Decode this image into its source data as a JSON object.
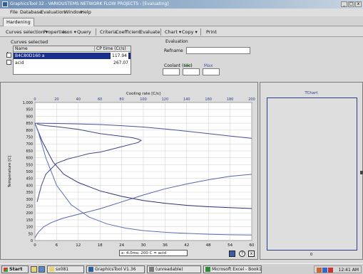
{
  "window": {
    "title": "GraphicsTool 32 - VARIOUSTEMS NETWORK FLOW PROJECTS - [Evaluating]",
    "min_glyph": "_",
    "max_glyph": "□",
    "close_glyph": "x"
  },
  "menu": [
    "File",
    "Database",
    "Evaluation",
    "Window",
    "Help"
  ],
  "tabs": [
    "Hardening"
  ],
  "toolbar": {
    "items": [
      "Curves selection ▾",
      "Properties",
      "Icon ▾",
      "Query",
      "Criteria",
      "Coefficient",
      "Evaluate",
      "Chart ▾",
      "Copy ▾",
      "Print"
    ]
  },
  "curves": {
    "group_label": "Curves selected",
    "headers": [
      "Name",
      "CP time (Cr/s)"
    ],
    "rows": [
      {
        "name": "B4C80D160 a",
        "value": "117.94"
      },
      {
        "name": "acid",
        "value": "267.07"
      }
    ]
  },
  "evaluation": {
    "group_label": "Evaluation",
    "refname_label": "Refname",
    "refname_value": "",
    "coolant_label": "Coolant (sec)",
    "min_label": "Min",
    "max_label": "Max"
  },
  "chart_data": {
    "type": "line",
    "title": "",
    "xlabel": "Time [s]",
    "ylabel": "Temperature [C]",
    "top_xlabel": "Cooling rate [C/s]",
    "xlim": [
      0,
      60
    ],
    "ylim": [
      0,
      1000
    ],
    "top_xlim": [
      0,
      200
    ],
    "x_ticks": [
      0,
      6,
      12,
      18,
      24,
      30,
      36,
      42,
      48,
      54,
      60
    ],
    "y_ticks": [
      0,
      50,
      100,
      150,
      200,
      250,
      300,
      350,
      400,
      450,
      500,
      550,
      600,
      650,
      700,
      750,
      800,
      850,
      900,
      950,
      1000
    ],
    "y_tick_labels": [
      "0",
      "50",
      "100",
      "150",
      "200",
      "250",
      "300",
      "350",
      "400",
      "450",
      "500",
      "550",
      "600",
      "650",
      "700",
      "750",
      "800",
      "850",
      "900",
      "950",
      "1,000"
    ],
    "top_ticks": [
      0,
      20,
      40,
      60,
      80,
      100,
      120,
      140,
      160,
      180,
      200
    ],
    "grid": true,
    "series": [
      {
        "color": "#2c2f78",
        "axis": "bottom",
        "x": [
          0,
          2,
          5,
          8,
          12,
          18,
          24,
          30,
          36,
          42,
          48,
          54,
          60
        ],
        "y": [
          850,
          720,
          570,
          480,
          420,
          360,
          320,
          290,
          270,
          255,
          245,
          238,
          232
        ]
      },
      {
        "color": "#5a6fb6",
        "axis": "bottom",
        "x": [
          0,
          1,
          3,
          6,
          10,
          15,
          20,
          25,
          30,
          36,
          42,
          48,
          54,
          60
        ],
        "y": [
          850,
          780,
          600,
          400,
          260,
          170,
          120,
          90,
          72,
          60,
          52,
          46,
          42,
          40
        ]
      },
      {
        "color": "#4a4f9a",
        "axis": "top",
        "x": [
          0,
          20,
          40,
          60,
          80,
          100,
          120,
          140,
          160,
          180,
          200
        ],
        "y": [
          850,
          848,
          845,
          840,
          832,
          822,
          808,
          792,
          775,
          757,
          740
        ]
      },
      {
        "color": "#404486",
        "axis": "top",
        "x": [
          2,
          6,
          10,
          20,
          30,
          40,
          50,
          60,
          70,
          80,
          90,
          95,
          98,
          95,
          90,
          80,
          70,
          60,
          50,
          40,
          30,
          20,
          10,
          5,
          2
        ],
        "y": [
          280,
          400,
          480,
          560,
          590,
          610,
          630,
          640,
          660,
          680,
          700,
          710,
          725,
          735,
          745,
          755,
          765,
          775,
          790,
          805,
          815,
          825,
          832,
          838,
          845
        ]
      },
      {
        "color": "#5564a8",
        "axis": "top",
        "x": [
          0,
          3,
          8,
          15,
          25,
          40,
          60,
          80,
          100,
          120,
          140,
          160,
          180,
          200
        ],
        "y": [
          20,
          60,
          100,
          130,
          160,
          190,
          230,
          280,
          330,
          375,
          410,
          440,
          465,
          480
        ]
      }
    ]
  },
  "status_text": "x: 4.0ms: 200 C = acid",
  "help_glyph": "?",
  "close_glyph": "x",
  "tchart": {
    "title": "TChart",
    "x_label": "0"
  },
  "taskbar": {
    "start": "Start",
    "tasks": [
      "sx081",
      "GraphicsTool V1.36",
      "(unreadable)",
      "Microsoft Excel - Book1"
    ],
    "clock": "12:41 AM"
  }
}
